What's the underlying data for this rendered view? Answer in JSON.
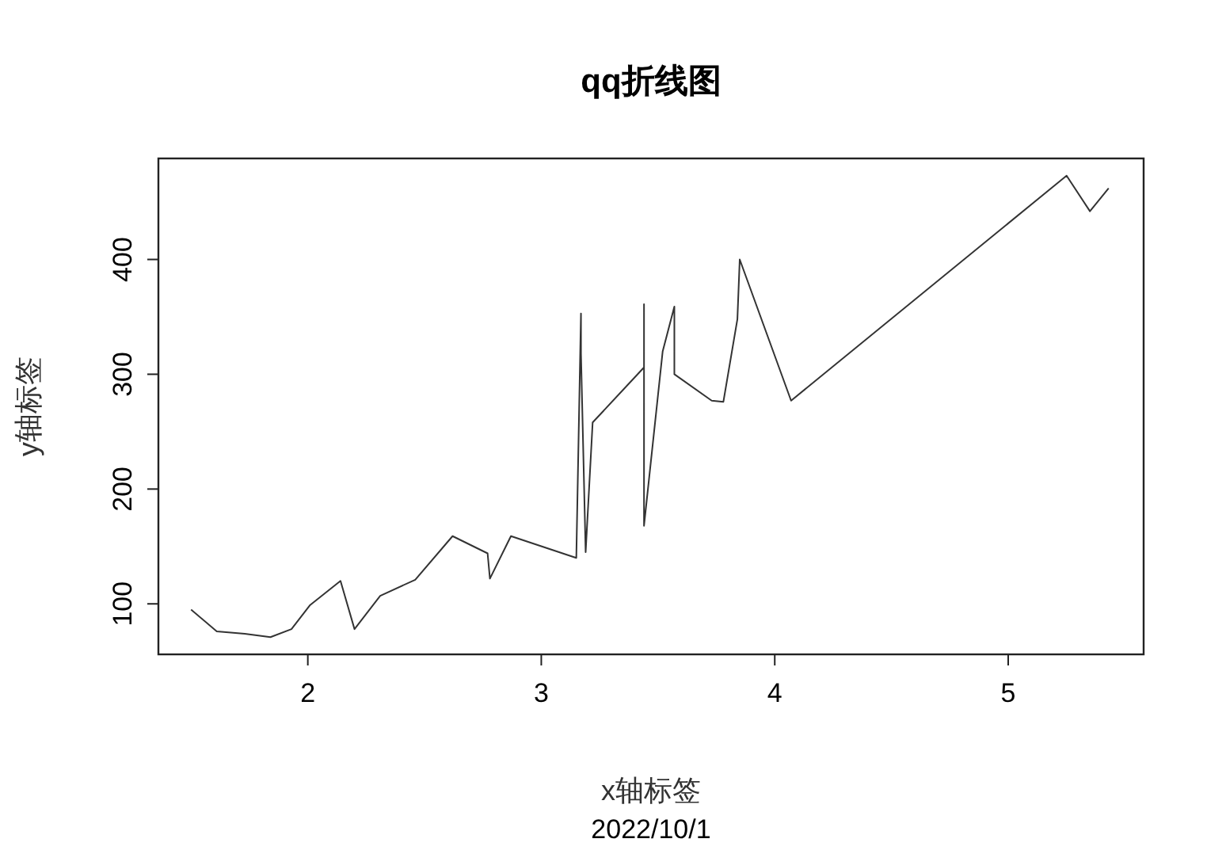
{
  "chart_data": {
    "type": "line",
    "title": "qq折线图",
    "xlabel": "x轴标签",
    "ylabel": "y轴标签",
    "annotations": [
      "2022/10/1"
    ],
    "x": [
      1.5,
      1.61,
      1.73,
      1.84,
      1.93,
      2.01,
      2.14,
      2.2,
      2.31,
      2.46,
      2.62,
      2.77,
      2.78,
      2.87,
      3.15,
      3.16,
      3.17,
      3.17,
      3.19,
      3.22,
      3.44,
      3.44,
      3.44,
      3.44,
      3.52,
      3.57,
      3.57,
      3.73,
      3.78,
      3.84,
      3.85,
      4.07,
      5.25,
      5.35,
      5.43
    ],
    "series": [
      {
        "color": "#333333",
        "values": [
          95,
          76,
          74,
          71,
          78,
          99,
          120,
          78,
          107,
          121,
          159,
          144,
          122,
          159,
          140,
          247,
          353,
          318,
          145,
          258,
          306,
          361,
          238,
          168,
          320,
          359,
          300,
          277,
          276,
          348,
          400,
          277,
          473,
          442,
          462
        ]
      }
    ],
    "xlim": [
      1.36,
      5.58
    ],
    "ylim": [
      56,
      488
    ],
    "xticks": [
      2,
      3,
      4,
      5
    ],
    "yticks": [
      100,
      200,
      300,
      400
    ],
    "grid": false,
    "marker": "none",
    "line_style": "solid"
  }
}
